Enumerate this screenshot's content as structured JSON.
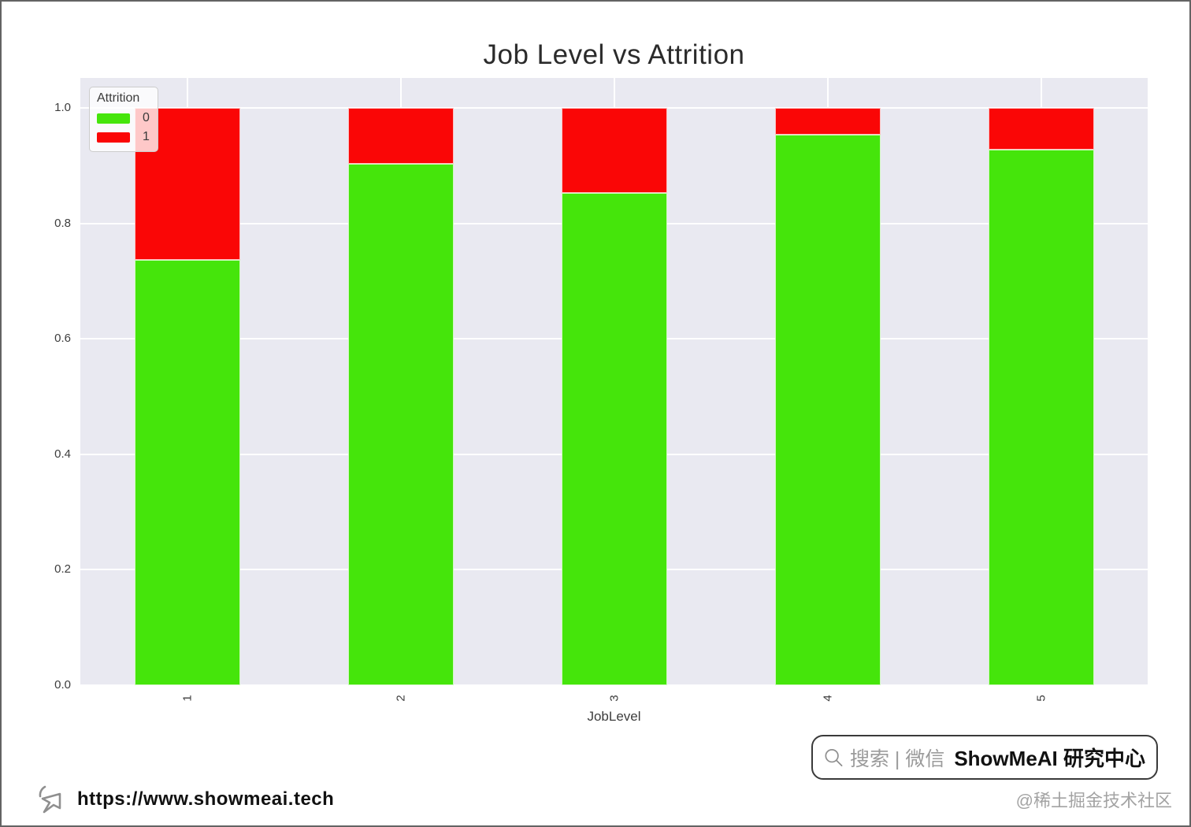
{
  "page": {
    "background": "#ffffff",
    "frame_border_color": "#636363"
  },
  "chart_data": {
    "type": "bar",
    "stacked": true,
    "title": "Job Level vs Attrition",
    "xlabel": "JobLevel",
    "ylabel": "",
    "categories": [
      "1",
      "2",
      "3",
      "4",
      "5"
    ],
    "series": [
      {
        "name": "0",
        "color": "#45e50b",
        "values": [
          0.737,
          0.903,
          0.853,
          0.953,
          0.928
        ]
      },
      {
        "name": "1",
        "color": "#fa0606",
        "values": [
          0.263,
          0.097,
          0.147,
          0.047,
          0.072
        ]
      }
    ],
    "legend_title": "Attrition",
    "legend_position": "upper left",
    "yticks": [
      "1.0",
      "0.8",
      "0.6",
      "0.4",
      "0.2",
      "0.0"
    ],
    "ylim": [
      0.0,
      1.05
    ],
    "grid": true,
    "plot_background": "#e9e9f1",
    "gridline_color": "#ffffff"
  },
  "watermark": {
    "search_label": "搜索 | 微信",
    "brand": "ShowMeAI 研究中心",
    "community": "@稀土掘金技术社区"
  },
  "footer": {
    "url": "https://www.showmeai.tech"
  }
}
